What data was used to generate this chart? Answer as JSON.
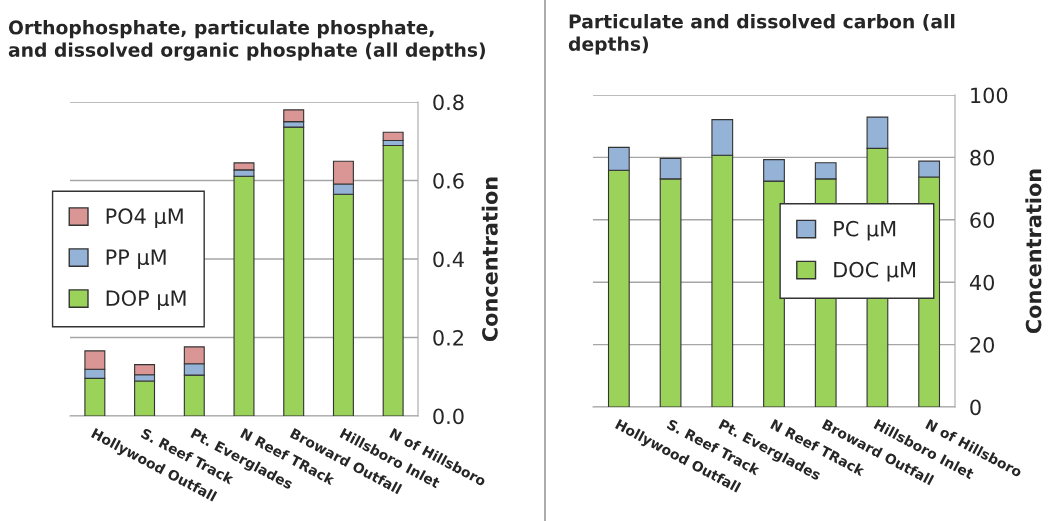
{
  "chart_data": [
    {
      "type": "bar",
      "stacked": true,
      "title": "Orthophosphate, particulate phosphate,\nand dissolved organic phosphate (all depths)",
      "ylabel": "Concentration",
      "categories": [
        "Hollywood Outfall",
        "S. Reef Track",
        "Pt. Everglades",
        "N Reef TRack",
        "Broward Outfall",
        "Hillsboro Inlet",
        "N of Hillsboro"
      ],
      "series": [
        {
          "name": "DOP µM",
          "color": "#9bd25a",
          "values": [
            0.096,
            0.089,
            0.104,
            0.611,
            0.736,
            0.565,
            0.689
          ]
        },
        {
          "name": "PP µM",
          "color": "#95b3d7",
          "values": [
            0.023,
            0.016,
            0.029,
            0.016,
            0.014,
            0.026,
            0.013
          ]
        },
        {
          "name": "PO4 µM",
          "color": "#d99694",
          "values": [
            0.047,
            0.026,
            0.043,
            0.018,
            0.03,
            0.058,
            0.021
          ]
        }
      ],
      "ylim": [
        0,
        0.8
      ],
      "yticks": [
        {
          "value": 0,
          "label": "0.0"
        },
        {
          "value": 0.2,
          "label": "0.2"
        },
        {
          "value": 0.4,
          "label": "0.4"
        },
        {
          "value": 0.6,
          "label": "0.6"
        },
        {
          "value": 0.8,
          "label": "0.8"
        }
      ],
      "grid": "y",
      "legend": "center left"
    },
    {
      "type": "bar",
      "stacked": true,
      "title": "Particulate and dissolved carbon (all\ndepths)",
      "ylabel": "Concentration",
      "categories": [
        "Hollywood Outfall",
        "S. Reef Track",
        "Pt. Everglades",
        "N Reef TRack",
        "Broward Outfall",
        "Hillsboro Inlet",
        "N of Hillsboro"
      ],
      "series": [
        {
          "name": "DOC µM",
          "color": "#9bd25a",
          "values": [
            75.9,
            73.1,
            80.7,
            72.4,
            73.1,
            82.9,
            73.7
          ]
        },
        {
          "name": "PC µM",
          "color": "#95b3d7",
          "values": [
            7.3,
            6.6,
            11.4,
            6.9,
            5.2,
            10.0,
            5.1
          ]
        }
      ],
      "ylim": [
        0,
        100
      ],
      "yticks": [
        0,
        20,
        40,
        60,
        80,
        100
      ],
      "grid": "y",
      "legend": "center right"
    }
  ]
}
